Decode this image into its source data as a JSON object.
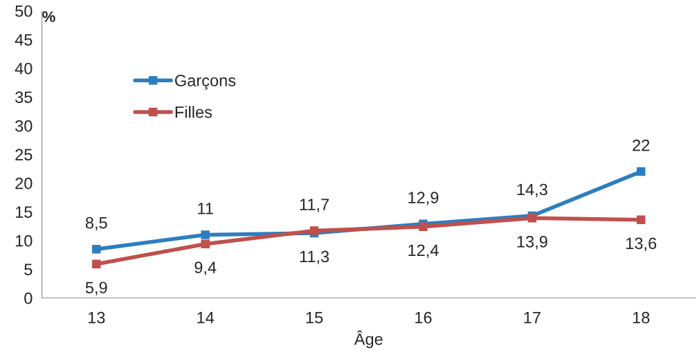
{
  "chart_data": {
    "type": "line",
    "xlabel": "Âge",
    "ylabel": "%",
    "categories": [
      "13",
      "14",
      "15",
      "16",
      "17",
      "18"
    ],
    "series": [
      {
        "name": "Garçons",
        "color": "#2e7ebf",
        "values": [
          8.5,
          11,
          11.3,
          12.9,
          14.3,
          22
        ],
        "value_labels": [
          "8,5",
          "11",
          "11,3",
          "12,9",
          "14,3",
          "22"
        ]
      },
      {
        "name": "Filles",
        "color": "#c0504d",
        "values": [
          5.9,
          9.4,
          11.7,
          12.4,
          13.9,
          13.6
        ],
        "value_labels": [
          "5,9",
          "9,4",
          "11,7",
          "12,4",
          "13,9",
          "13,6"
        ]
      }
    ],
    "ylim": [
      0,
      50
    ],
    "yticks": [
      0,
      5,
      10,
      15,
      20,
      25,
      30,
      35,
      40,
      45,
      50
    ],
    "grid": false,
    "legend": "top left",
    "marker": "square",
    "line_style": "solid"
  }
}
